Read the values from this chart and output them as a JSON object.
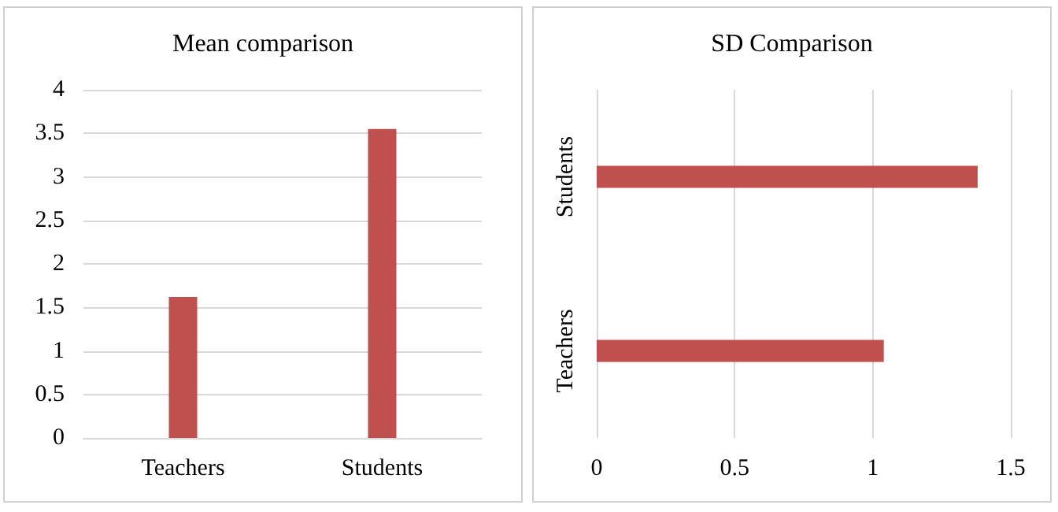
{
  "chart_data": [
    {
      "type": "bar",
      "title": "Mean comparison",
      "categories": [
        "Teachers",
        "Students"
      ],
      "values": [
        1.62,
        3.55
      ],
      "color": "#c0504d",
      "ylim": [
        0,
        4
      ],
      "yticks": [
        0,
        0.5,
        1,
        1.5,
        2,
        2.5,
        3,
        3.5,
        4
      ],
      "grid": "y"
    },
    {
      "type": "bar",
      "title": "SD Comparison",
      "orientation": "horizontal",
      "categories": [
        "Students",
        "Teachers"
      ],
      "values": [
        1.38,
        1.04
      ],
      "color": "#c0504d",
      "xlim": [
        0,
        1.5
      ],
      "xticks": [
        0,
        0.5,
        1,
        1.5
      ],
      "grid": "x"
    }
  ]
}
